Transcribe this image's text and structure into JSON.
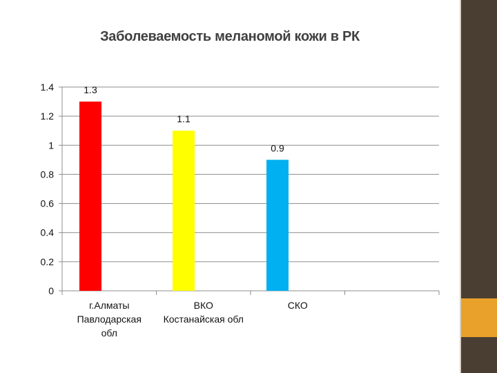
{
  "chart_data": {
    "type": "bar",
    "title": "Заболеваемость меланомой кожи в РК",
    "categories": [
      [
        "г.Алматы",
        "Павлодарская",
        "обл"
      ],
      [
        "ВКО",
        "Костанайская обл"
      ],
      [
        "СКО"
      ]
    ],
    "values": [
      1.3,
      1.1,
      0.9
    ],
    "data_labels": [
      "1.3",
      "1.1",
      "0.9"
    ],
    "bar_colors": [
      "#ff0000",
      "#ffff00",
      "#00b0f0"
    ],
    "ylim": [
      0,
      1.4
    ],
    "y_ticks": [
      "0",
      "0.2",
      "0.4",
      "0.6",
      "0.8",
      "1",
      "1.2",
      "1.4"
    ],
    "grid": true,
    "legend": "none"
  },
  "theme": {
    "sidebar_color": "#4a3e33",
    "accent_color": "#e9a12b"
  }
}
